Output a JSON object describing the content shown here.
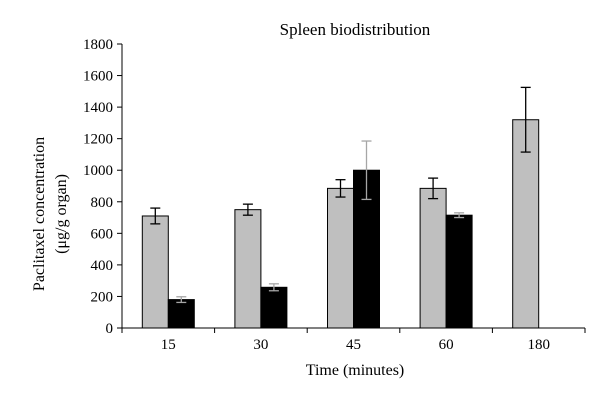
{
  "chart_data": {
    "type": "bar",
    "title": "Spleen biodistribution",
    "xlabel": "Time (minutes)",
    "ylabel_line1": "Paclitaxel concentration",
    "ylabel_line2": "(μg/g organ)",
    "ylim": [
      0,
      1800
    ],
    "yticks": [
      0,
      200,
      400,
      600,
      800,
      1000,
      1200,
      1400,
      1600,
      1800
    ],
    "categories": [
      "15",
      "30",
      "45",
      "60",
      "180"
    ],
    "grid": false,
    "legend": "none",
    "series": [
      {
        "color": "#bfbfbf",
        "values": [
          710,
          750,
          885,
          885,
          1320
        ],
        "errors": [
          50,
          35,
          55,
          65,
          205
        ],
        "error_color": "#000000"
      },
      {
        "color": "#000000",
        "values": [
          180,
          258,
          1000,
          715,
          null
        ],
        "errors": [
          18,
          22,
          185,
          15,
          null
        ],
        "error_color": "#a6a6a6"
      }
    ]
  }
}
